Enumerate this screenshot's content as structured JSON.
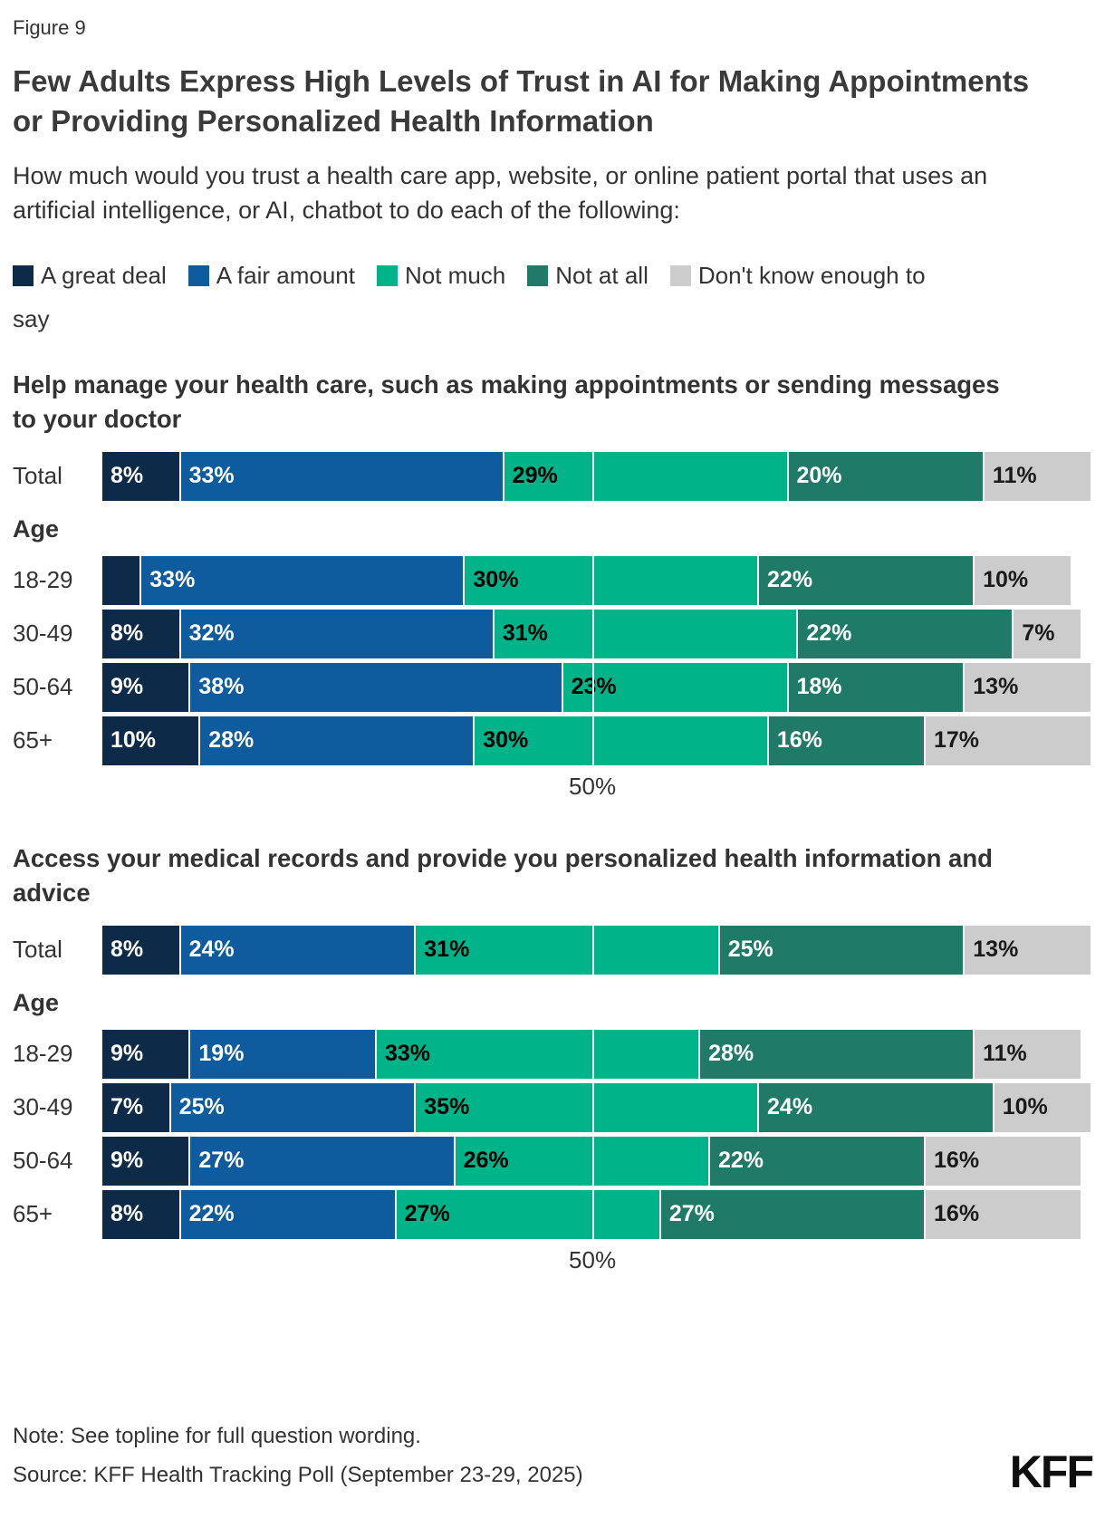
{
  "figure_label": "Figure 9",
  "title": "Few Adults Express High Levels of Trust in AI for Making Appointments or Providing Personalized Health Information",
  "subtitle": "How much would you trust a health care app, website, or online patient portal that uses an artificial intelligence, or AI, chatbot to do each of the following:",
  "legend": [
    {
      "label": "A great deal",
      "color": "#0d2b49"
    },
    {
      "label": "A fair amount",
      "color": "#0e5b9e"
    },
    {
      "label": "Not much",
      "color": "#00b388"
    },
    {
      "label": "Not at all",
      "color": "#1f7a68"
    },
    {
      "label": "Don't know enough to say",
      "color": "#cccccc"
    }
  ],
  "label_text_colors": [
    "#ffffff",
    "#ffffff",
    "#000000",
    "#ffffff",
    "#1a1a1a"
  ],
  "gridline_color": "#ffffff",
  "chart_data": [
    {
      "type": "bar",
      "stacked": true,
      "orientation": "horizontal",
      "title": "Help manage your health care, such as making appointments or sending messages to your doctor",
      "group_label": "Age",
      "series_names": [
        "A great deal",
        "A fair amount",
        "Not much",
        "Not at all",
        "Don't know enough to say"
      ],
      "axis": {
        "label": "50%",
        "max": 101,
        "gridline_at": 50
      },
      "rows": [
        {
          "label": "Total",
          "values": [
            8,
            33,
            29,
            20,
            11
          ],
          "display": [
            "8%",
            "33%",
            "29%",
            "20%",
            "11%"
          ],
          "group": false
        },
        {
          "label": "18-29",
          "values": [
            4,
            33,
            30,
            22,
            10
          ],
          "display": [
            "",
            "33%",
            "30%",
            "22%",
            "10%"
          ],
          "group": true
        },
        {
          "label": "30-49",
          "values": [
            8,
            32,
            31,
            22,
            7
          ],
          "display": [
            "8%",
            "32%",
            "31%",
            "22%",
            "7%"
          ],
          "group": true
        },
        {
          "label": "50-64",
          "values": [
            9,
            38,
            23,
            18,
            13
          ],
          "display": [
            "9%",
            "38%",
            "23%",
            "18%",
            "13%"
          ],
          "group": true
        },
        {
          "label": "65+",
          "values": [
            10,
            28,
            30,
            16,
            17
          ],
          "display": [
            "10%",
            "28%",
            "30%",
            "16%",
            "17%"
          ],
          "group": true
        }
      ]
    },
    {
      "type": "bar",
      "stacked": true,
      "orientation": "horizontal",
      "title": "Access your medical records and provide you personalized health information and advice",
      "group_label": "Age",
      "series_names": [
        "A great deal",
        "A fair amount",
        "Not much",
        "Not at all",
        "Don't know enough to say"
      ],
      "axis": {
        "label": "50%",
        "max": 101,
        "gridline_at": 50
      },
      "rows": [
        {
          "label": "Total",
          "values": [
            8,
            24,
            31,
            25,
            13
          ],
          "display": [
            "8%",
            "24%",
            "31%",
            "25%",
            "13%"
          ],
          "group": false
        },
        {
          "label": "18-29",
          "values": [
            9,
            19,
            33,
            28,
            11
          ],
          "display": [
            "9%",
            "19%",
            "33%",
            "28%",
            "11%"
          ],
          "group": true
        },
        {
          "label": "30-49",
          "values": [
            7,
            25,
            35,
            24,
            10
          ],
          "display": [
            "7%",
            "25%",
            "35%",
            "24%",
            "10%"
          ],
          "group": true
        },
        {
          "label": "50-64",
          "values": [
            9,
            27,
            26,
            22,
            16
          ],
          "display": [
            "9%",
            "27%",
            "26%",
            "22%",
            "16%"
          ],
          "group": true
        },
        {
          "label": "65+",
          "values": [
            8,
            22,
            27,
            27,
            16
          ],
          "display": [
            "8%",
            "22%",
            "27%",
            "27%",
            "16%"
          ],
          "group": true
        }
      ]
    }
  ],
  "note": "Note: See topline for full question wording.",
  "source": "Source: KFF Health Tracking Poll (September 23-29, 2025)",
  "logo": "KFF"
}
